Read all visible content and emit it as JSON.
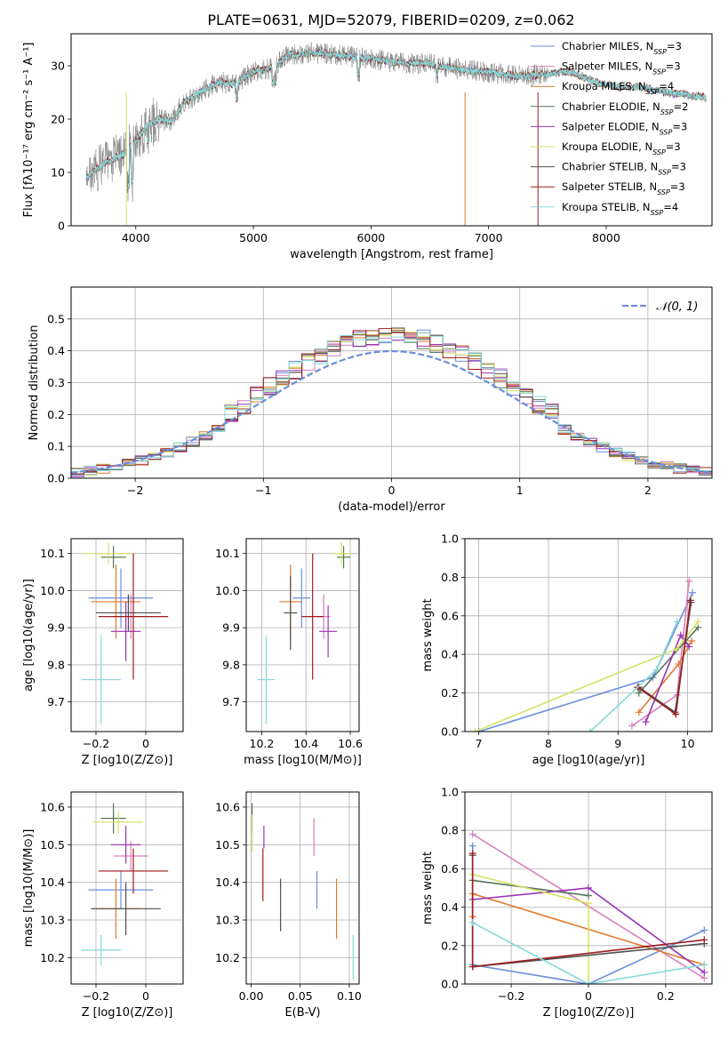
{
  "figure": {
    "title": "PLATE=0631, MJD=52079, FIBERID=0209, z=0.062"
  },
  "colors": {
    "data_spectrum": "#808080",
    "models": [
      "#6a8fdc",
      "#d97fbe",
      "#e07a2c",
      "#55745a",
      "#9932b5",
      "#d4e265",
      "#505050",
      "#9e1c1c",
      "#86d9d9"
    ],
    "gaussian": "#6a8fdc",
    "grid": "#b0b0b0"
  },
  "chart_data": [
    {
      "id": "spectrum",
      "type": "line",
      "title": "PLATE=0631, MJD=52079, FIBERID=0209, z=0.062",
      "xlabel": "wavelength [Angstrom, rest frame]",
      "ylabel": "Flux [fλ10⁻¹⁷ erg cm⁻² s⁻¹ A⁻¹]",
      "xlim": [
        3450,
        8900
      ],
      "ylim": [
        0,
        36
      ],
      "xticks": [
        4000,
        5000,
        6000,
        7000,
        8000
      ],
      "yticks": [
        0,
        10,
        20,
        30
      ],
      "grid": false,
      "legend_position": "top-right",
      "continuum_points": [
        [
          3580,
          9
        ],
        [
          3750,
          12
        ],
        [
          3900,
          13.5
        ],
        [
          4000,
          16
        ],
        [
          4100,
          19
        ],
        [
          4200,
          20
        ],
        [
          4300,
          19.5
        ],
        [
          4400,
          23
        ],
        [
          4550,
          25
        ],
        [
          4700,
          27
        ],
        [
          4850,
          26.5
        ],
        [
          5000,
          29
        ],
        [
          5150,
          29.5
        ],
        [
          5300,
          32
        ],
        [
          5500,
          32.5
        ],
        [
          5700,
          32
        ],
        [
          5900,
          31.5
        ],
        [
          6100,
          31
        ],
        [
          6300,
          30.5
        ],
        [
          6500,
          30.5
        ],
        [
          6700,
          29.5
        ],
        [
          6900,
          29
        ],
        [
          7100,
          28.5
        ],
        [
          7300,
          28
        ],
        [
          7500,
          28.5
        ],
        [
          7700,
          29
        ],
        [
          7900,
          27
        ],
        [
          8100,
          26
        ],
        [
          8300,
          26
        ],
        [
          8500,
          25
        ],
        [
          8700,
          24.5
        ],
        [
          8850,
          24
        ]
      ],
      "series": [
        {
          "name": "Chabrier MILES, N_SSP=3"
        },
        {
          "name": "Salpeter MILES, N_SSP=3"
        },
        {
          "name": "Kroupa MILES, N_SSP=4"
        },
        {
          "name": "Chabrier ELODIE, N_SSP=2"
        },
        {
          "name": "Salpeter ELODIE, N_SSP=3"
        },
        {
          "name": "Kroupa ELODIE, N_SSP=3"
        },
        {
          "name": "Chabrier STELIB, N_SSP=3"
        },
        {
          "name": "Salpeter STELIB, N_SSP=3"
        },
        {
          "name": "Kroupa STELIB, N_SSP=4"
        }
      ]
    },
    {
      "id": "residuals",
      "type": "bar",
      "xlabel": "(data-model)/error",
      "ylabel": "Normed distribution",
      "xlim": [
        -2.5,
        2.5
      ],
      "ylim": [
        0,
        0.6
      ],
      "xticks": [
        -2,
        -1,
        0,
        1,
        2
      ],
      "yticks": [
        0.0,
        0.1,
        0.2,
        0.3,
        0.4,
        0.5
      ],
      "grid": true,
      "legend": "N(0,1)",
      "legend_position": "top-right",
      "gaussian": {
        "mu": 0,
        "sigma": 1
      }
    },
    {
      "id": "age-vs-Z",
      "type": "scatter",
      "xlabel": "Z [log10(Z/Z⊙)]",
      "ylabel": "age  [log10(age/yr)]",
      "xlim": [
        -0.3,
        0.15
      ],
      "ylim": [
        9.62,
        10.14
      ],
      "xticks": [
        -0.2,
        0.0
      ],
      "yticks": [
        9.7,
        9.8,
        9.9,
        10.0,
        10.1
      ],
      "grid": true,
      "points": [
        {
          "x": -0.1,
          "xerr": 0.13,
          "y": 9.98,
          "yerr": 0.08
        },
        {
          "x": -0.06,
          "xerr": 0.07,
          "y": 9.93,
          "yerr": 0.06
        },
        {
          "x": -0.12,
          "xerr": 0.1,
          "y": 9.97,
          "yerr": 0.1
        },
        {
          "x": -0.13,
          "xerr": 0.05,
          "y": 10.09,
          "yerr": 0.03
        },
        {
          "x": -0.08,
          "xerr": 0.06,
          "y": 9.89,
          "yerr": 0.08
        },
        {
          "x": -0.15,
          "xerr": 0.1,
          "y": 10.1,
          "yerr": 0.03
        },
        {
          "x": -0.07,
          "xerr": 0.13,
          "y": 9.94,
          "yerr": 0.05
        },
        {
          "x": -0.05,
          "xerr": 0.14,
          "y": 9.93,
          "yerr": 0.17
        },
        {
          "x": -0.18,
          "xerr": 0.08,
          "y": 9.76,
          "yerr": 0.12
        }
      ]
    },
    {
      "id": "age-vs-mass",
      "type": "scatter",
      "xlabel": "mass [log10(M/M⊙)]",
      "ylabel": "",
      "xlim": [
        10.13,
        10.64
      ],
      "ylim": [
        9.62,
        10.14
      ],
      "xticks": [
        10.2,
        10.4,
        10.6
      ],
      "yticks": [
        9.7,
        9.8,
        9.9,
        10.0,
        10.1
      ],
      "grid": true,
      "points": [
        {
          "x": 10.38,
          "xerr": 0.04,
          "y": 9.98,
          "yerr": 0.08
        },
        {
          "x": 10.48,
          "xerr": 0.03,
          "y": 9.93,
          "yerr": 0.06
        },
        {
          "x": 10.33,
          "xerr": 0.05,
          "y": 9.97,
          "yerr": 0.1
        },
        {
          "x": 10.57,
          "xerr": 0.03,
          "y": 10.09,
          "yerr": 0.03
        },
        {
          "x": 10.5,
          "xerr": 0.04,
          "y": 9.89,
          "yerr": 0.07
        },
        {
          "x": 10.56,
          "xerr": 0.04,
          "y": 10.1,
          "yerr": 0.03
        },
        {
          "x": 10.33,
          "xerr": 0.03,
          "y": 9.94,
          "yerr": 0.1
        },
        {
          "x": 10.43,
          "xerr": 0.05,
          "y": 9.93,
          "yerr": 0.17
        },
        {
          "x": 10.22,
          "xerr": 0.04,
          "y": 9.76,
          "yerr": 0.12
        }
      ]
    },
    {
      "id": "weight-vs-age",
      "type": "line",
      "xlabel": "age  [log10(age/yr)]",
      "ylabel": "mass weight",
      "xlim": [
        6.8,
        10.35
      ],
      "ylim": [
        0,
        1.0
      ],
      "xticks": [
        7,
        8,
        9,
        10
      ],
      "yticks": [
        0.0,
        0.2,
        0.4,
        0.6,
        0.8,
        1.0
      ],
      "grid": true,
      "series": [
        {
          "x": [
            7.0,
            9.5,
            10.07
          ],
          "y": [
            0.0,
            0.28,
            0.72
          ]
        },
        {
          "x": [
            9.2,
            9.85,
            10.02
          ],
          "y": [
            0.03,
            0.19,
            0.78
          ]
        },
        {
          "x": [
            9.3,
            9.87,
            10.06
          ],
          "y": [
            0.1,
            0.35,
            0.47
          ]
        },
        {
          "x": [
            9.3,
            10.15
          ],
          "y": [
            0.2,
            0.54
          ]
        },
        {
          "x": [
            9.4,
            9.9,
            10.02
          ],
          "y": [
            0.05,
            0.5,
            0.44
          ]
        },
        {
          "x": [
            6.95,
            9.85,
            10.15
          ],
          "y": [
            0.0,
            0.43,
            0.57
          ]
        },
        {
          "x": [
            9.3,
            9.82,
            10.05
          ],
          "y": [
            0.23,
            0.1,
            0.67
          ]
        },
        {
          "x": [
            9.28,
            9.83,
            10.04
          ],
          "y": [
            0.23,
            0.09,
            0.68
          ]
        },
        {
          "x": [
            8.6,
            9.55,
            9.85
          ],
          "y": [
            0.0,
            0.32,
            0.57
          ]
        }
      ]
    },
    {
      "id": "mass-vs-Z",
      "type": "scatter",
      "xlabel": "Z [log10(Z/Z⊙)]",
      "ylabel": "mass [log10(M/M⊙)]",
      "xlim": [
        -0.3,
        0.15
      ],
      "ylim": [
        10.13,
        10.64
      ],
      "xticks": [
        -0.2,
        0.0
      ],
      "yticks": [
        10.2,
        10.3,
        10.4,
        10.5,
        10.6
      ],
      "grid": true,
      "points": [
        {
          "x": -0.1,
          "xerr": 0.13,
          "y": 10.38,
          "yerr": 0.05
        },
        {
          "x": -0.06,
          "xerr": 0.07,
          "y": 10.47,
          "yerr": 0.04
        },
        {
          "x": -0.12,
          "xerr": 0.1,
          "y": 10.33,
          "yerr": 0.08
        },
        {
          "x": -0.13,
          "xerr": 0.05,
          "y": 10.57,
          "yerr": 0.04
        },
        {
          "x": -0.08,
          "xerr": 0.06,
          "y": 10.5,
          "yerr": 0.05
        },
        {
          "x": -0.11,
          "xerr": 0.1,
          "y": 10.56,
          "yerr": 0.03
        },
        {
          "x": -0.08,
          "xerr": 0.14,
          "y": 10.33,
          "yerr": 0.07
        },
        {
          "x": -0.05,
          "xerr": 0.14,
          "y": 10.43,
          "yerr": 0.06
        },
        {
          "x": -0.18,
          "xerr": 0.08,
          "y": 10.22,
          "yerr": 0.04
        }
      ]
    },
    {
      "id": "mass-vs-EBV",
      "type": "scatter",
      "xlabel": "E(B-V)",
      "ylabel": "",
      "xlim": [
        -0.005,
        0.11
      ],
      "ylim": [
        10.13,
        10.64
      ],
      "xticks": [
        0.0,
        0.05,
        0.1
      ],
      "yticks": [
        10.2,
        10.3,
        10.4,
        10.5,
        10.6
      ],
      "grid": true,
      "points": [
        {
          "x": 0.067,
          "y": 10.38,
          "yerr": 0.05
        },
        {
          "x": 0.064,
          "y": 10.52,
          "yerr": 0.05
        },
        {
          "x": 0.087,
          "y": 10.33,
          "yerr": 0.08
        },
        {
          "x": 0.001,
          "y": 10.57,
          "yerr": 0.04
        },
        {
          "x": 0.013,
          "y": 10.52,
          "yerr": 0.03
        },
        {
          "x": 0.001,
          "y": 10.53,
          "yerr": 0.05
        },
        {
          "x": 0.03,
          "y": 10.34,
          "yerr": 0.07
        },
        {
          "x": 0.012,
          "y": 10.42,
          "yerr": 0.07
        },
        {
          "x": 0.104,
          "y": 10.2,
          "yerr": 0.06
        }
      ]
    },
    {
      "id": "weight-vs-Z",
      "type": "line",
      "xlabel": "Z [log10(Z/Z⊙)]",
      "ylabel": "mass weight",
      "xlim": [
        -0.32,
        0.32
      ],
      "ylim": [
        0,
        1.0
      ],
      "xticks": [
        -0.2,
        0.0,
        0.2
      ],
      "yticks": [
        0.0,
        0.2,
        0.4,
        0.6,
        0.8,
        1.0
      ],
      "grid": true,
      "series": [
        {
          "x": [
            -0.3,
            -0.3,
            0.0,
            0.3
          ],
          "y": [
            0.72,
            0.1,
            0.0,
            0.28
          ]
        },
        {
          "x": [
            -0.3,
            0.3
          ],
          "y": [
            0.78,
            0.03
          ]
        },
        {
          "x": [
            -0.3,
            -0.3,
            0.3
          ],
          "y": [
            0.35,
            0.47,
            0.1
          ]
        },
        {
          "x": [
            -0.3,
            0.0
          ],
          "y": [
            0.54,
            0.46
          ]
        },
        {
          "x": [
            -0.3,
            0.0,
            0.3
          ],
          "y": [
            0.44,
            0.5,
            0.06
          ]
        },
        {
          "x": [
            -0.3,
            0.0,
            0.0
          ],
          "y": [
            0.57,
            0.42,
            0.0
          ]
        },
        {
          "x": [
            -0.3,
            -0.3,
            0.3
          ],
          "y": [
            0.67,
            0.09,
            0.21
          ]
        },
        {
          "x": [
            -0.3,
            -0.3,
            0.3
          ],
          "y": [
            0.68,
            0.09,
            0.23
          ]
        },
        {
          "x": [
            -0.3,
            0.0,
            0.3
          ],
          "y": [
            0.32,
            0.0,
            0.1
          ]
        }
      ]
    }
  ]
}
